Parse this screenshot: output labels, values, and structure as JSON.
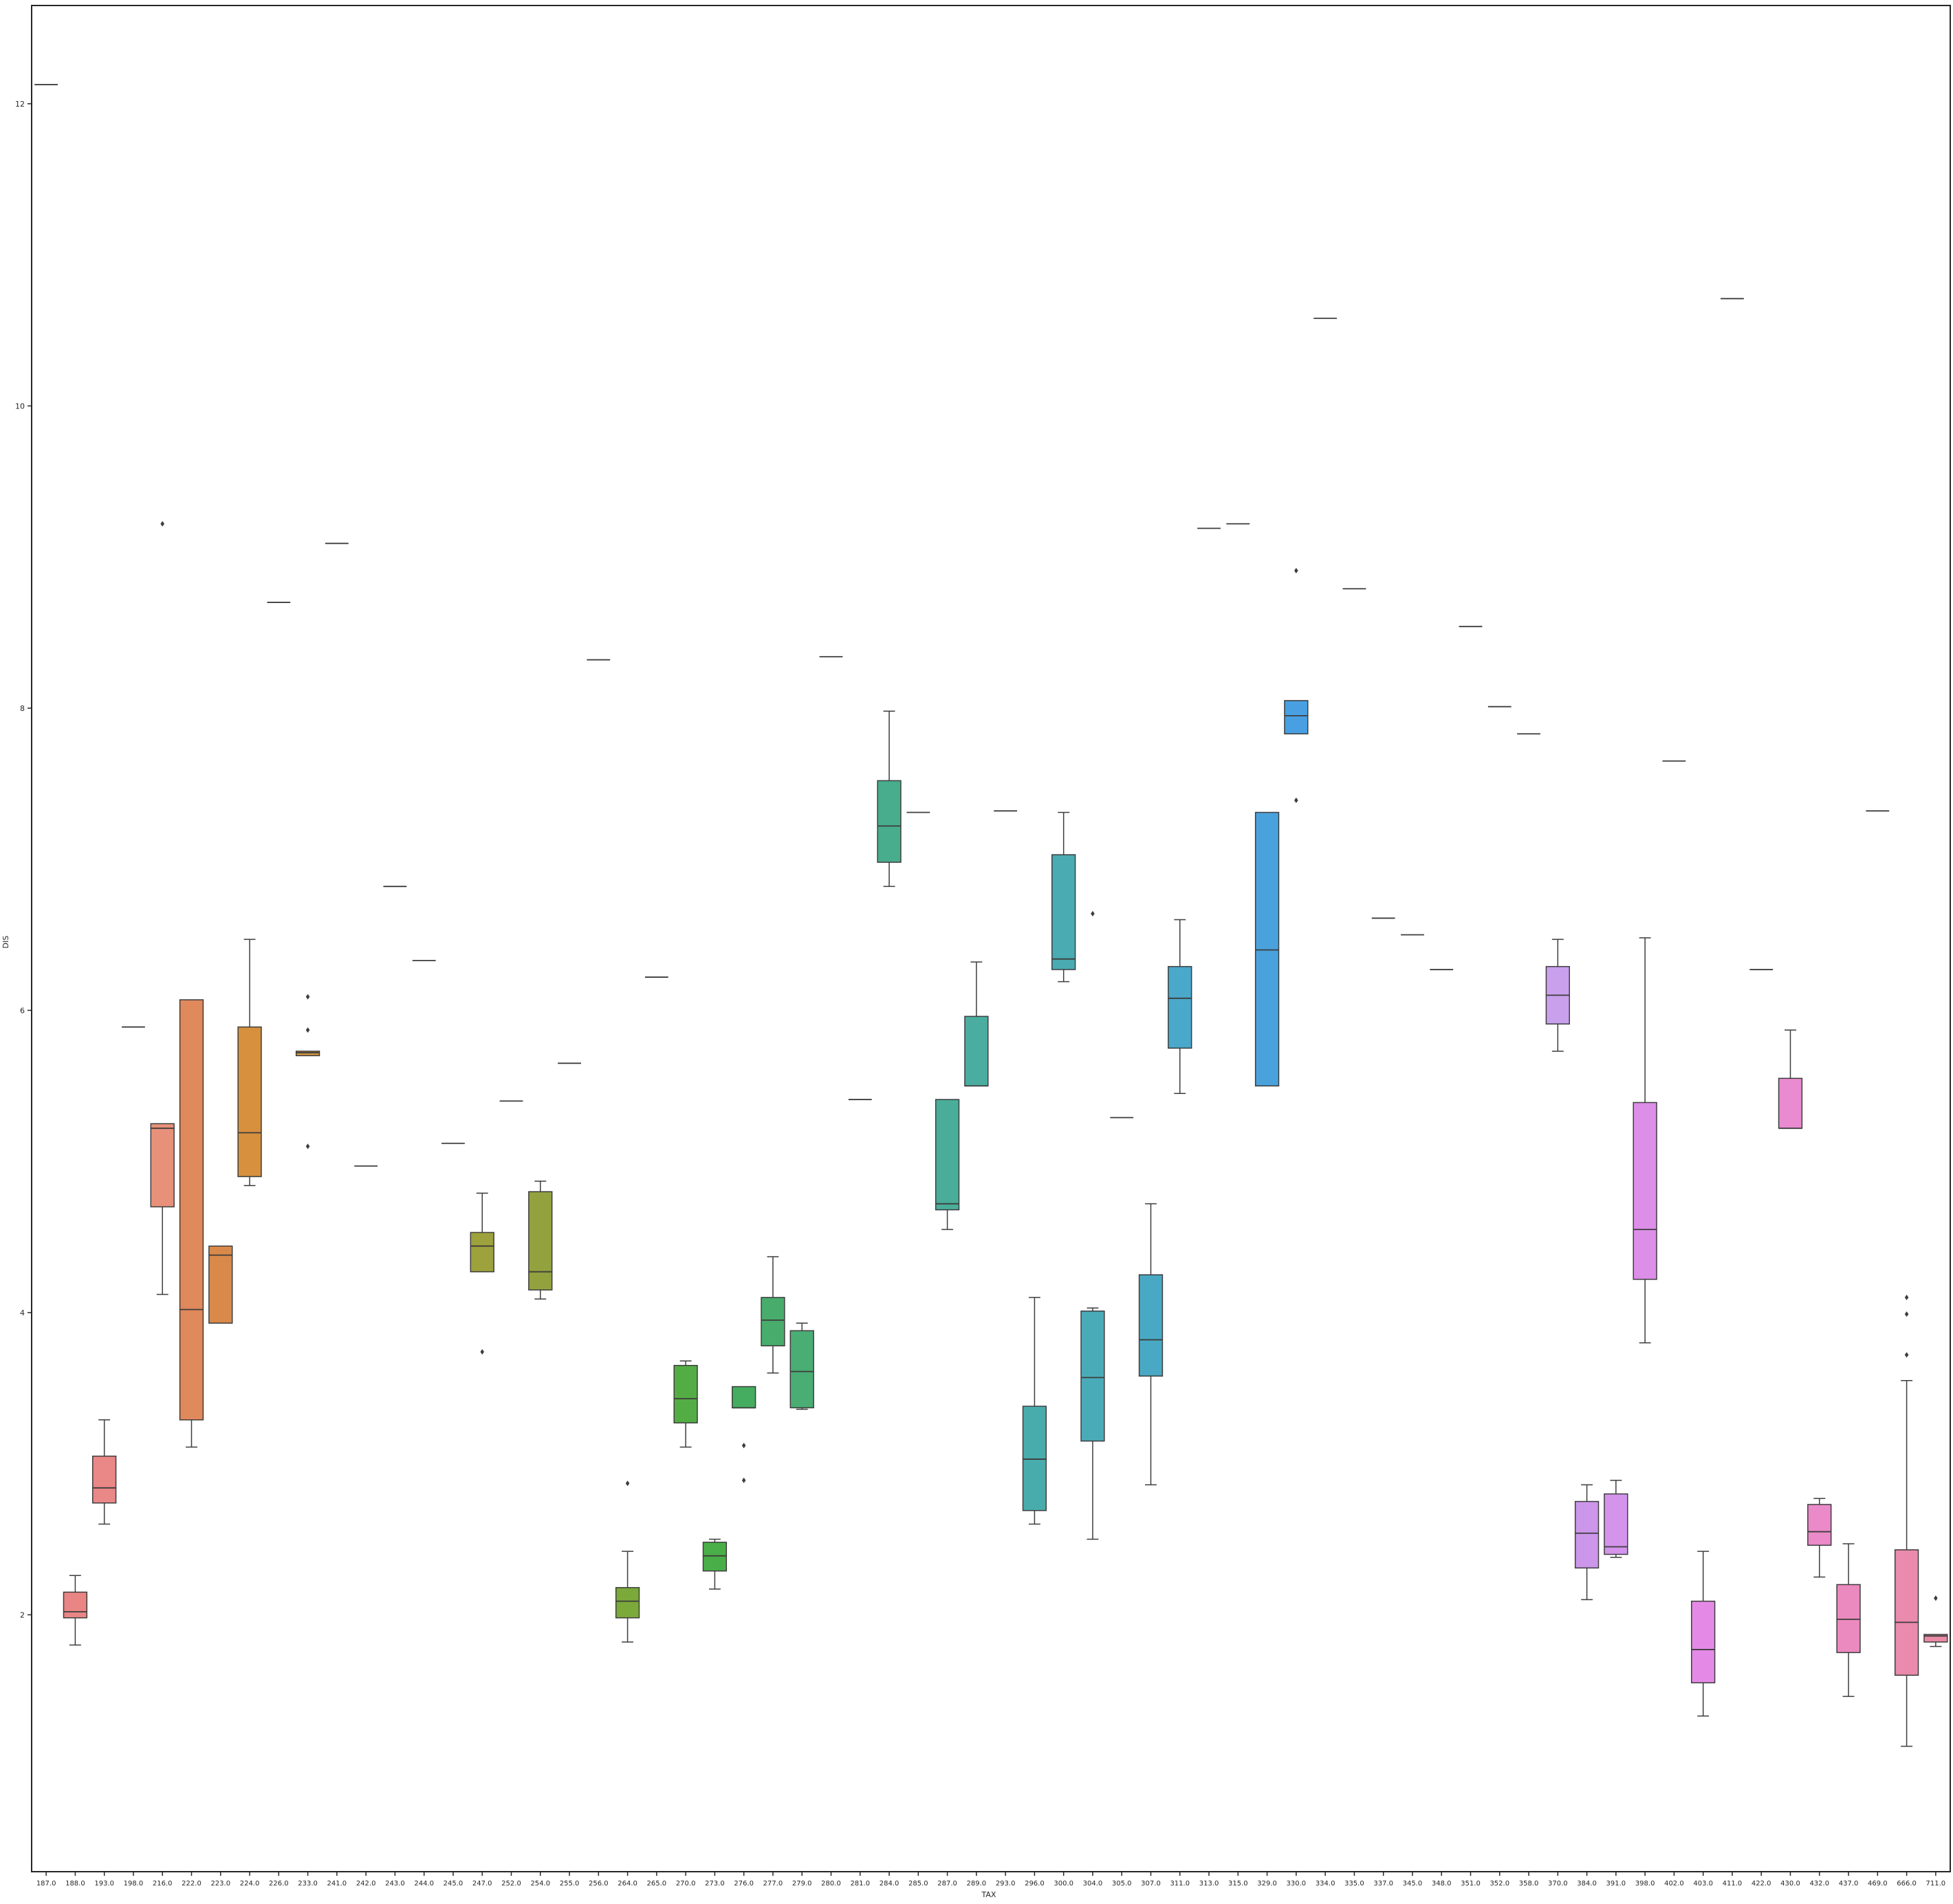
{
  "chart_data": {
    "type": "box",
    "title": "",
    "xlabel": "TAX",
    "ylabel": "DIS",
    "ylim": [
      0.3,
      12.65
    ],
    "yticks": [
      2,
      4,
      6,
      8,
      10,
      12
    ],
    "grid": false,
    "legend": null,
    "categories": [
      {
        "label": "187.0",
        "color": "#ea8484",
        "stats": [
          12.1265,
          12.1265,
          12.1265,
          12.1265,
          12.1265
        ],
        "outliers": []
      },
      {
        "label": "188.0",
        "color": "#ea8585",
        "stats": [
          1.8,
          1.98,
          2.02,
          2.15,
          2.26
        ],
        "outliers": []
      },
      {
        "label": "193.0",
        "color": "#ea8787",
        "stats": [
          2.6,
          2.74,
          2.84,
          3.05,
          3.29
        ],
        "outliers": []
      },
      {
        "label": "198.0",
        "color": "#e88a70",
        "stats": [
          5.89,
          5.89,
          5.89,
          5.89,
          5.89
        ],
        "outliers": []
      },
      {
        "label": "216.0",
        "color": "#e8917a",
        "stats": [
          4.12,
          4.7,
          5.22,
          5.25,
          5.25
        ],
        "outliers": [
          9.22
        ]
      },
      {
        "label": "222.0",
        "color": "#e0895c",
        "stats": [
          3.11,
          3.29,
          4.02,
          6.07,
          6.07
        ],
        "outliers": []
      },
      {
        "label": "223.0",
        "color": "#d98a4a",
        "stats": [
          3.93,
          3.93,
          4.38,
          4.44,
          4.44
        ],
        "outliers": []
      },
      {
        "label": "224.0",
        "color": "#d6903e",
        "stats": [
          4.84,
          4.9,
          5.19,
          5.89,
          6.47
        ],
        "outliers": []
      },
      {
        "label": "226.0",
        "color": "#d39440",
        "stats": [
          8.7,
          8.7,
          8.7,
          8.7,
          8.7
        ],
        "outliers": []
      },
      {
        "label": "233.0",
        "color": "#d09442",
        "stats": [
          5.7,
          5.7,
          5.72,
          5.73,
          5.73
        ],
        "outliers": [
          6.09,
          5.87,
          5.1
        ]
      },
      {
        "label": "241.0",
        "color": "#c49a3a",
        "stats": [
          9.09,
          9.09,
          9.09,
          9.09,
          9.09
        ],
        "outliers": []
      },
      {
        "label": "242.0",
        "color": "#b99c3c",
        "stats": [
          4.97,
          4.97,
          4.97,
          4.97,
          4.97
        ],
        "outliers": []
      },
      {
        "label": "243.0",
        "color": "#b09e3a",
        "stats": [
          6.82,
          6.82,
          6.82,
          6.82,
          6.82
        ],
        "outliers": []
      },
      {
        "label": "244.0",
        "color": "#a8a03a",
        "stats": [
          6.33,
          6.33,
          6.33,
          6.33,
          6.33
        ],
        "outliers": []
      },
      {
        "label": "245.0",
        "color": "#a2a13c",
        "stats": [
          5.12,
          5.12,
          5.12,
          5.12,
          5.12
        ],
        "outliers": []
      },
      {
        "label": "247.0",
        "color": "#9ea23c",
        "stats": [
          4.27,
          4.27,
          4.44,
          4.53,
          4.79
        ],
        "outliers": [
          3.74
        ]
      },
      {
        "label": "252.0",
        "color": "#96a23c",
        "stats": [
          5.4,
          5.4,
          5.4,
          5.4,
          5.4
        ],
        "outliers": []
      },
      {
        "label": "254.0",
        "color": "#93a23e",
        "stats": [
          4.09,
          4.15,
          4.27,
          4.8,
          4.87
        ],
        "outliers": []
      },
      {
        "label": "255.0",
        "color": "#8ba43e",
        "stats": [
          5.65,
          5.65,
          5.65,
          5.65,
          5.65
        ],
        "outliers": []
      },
      {
        "label": "256.0",
        "color": "#7fa740",
        "stats": [
          8.32,
          8.32,
          8.32,
          8.32,
          8.32
        ],
        "outliers": []
      },
      {
        "label": "264.0",
        "color": "#7ba93a",
        "stats": [
          1.82,
          1.98,
          2.09,
          2.18,
          2.42
        ],
        "outliers": [
          2.87
        ]
      },
      {
        "label": "265.0",
        "color": "#5eab3c",
        "stats": [
          6.22,
          6.22,
          6.22,
          6.22,
          6.22
        ],
        "outliers": []
      },
      {
        "label": "270.0",
        "color": "#54ad44",
        "stats": [
          3.11,
          3.27,
          3.43,
          3.65,
          3.68
        ],
        "outliers": []
      },
      {
        "label": "273.0",
        "color": "#4aae48",
        "stats": [
          2.17,
          2.29,
          2.39,
          2.48,
          2.5
        ],
        "outliers": []
      },
      {
        "label": "276.0",
        "color": "#45ad60",
        "stats": [
          3.37,
          3.37,
          3.37,
          3.51,
          3.51
        ],
        "outliers": [
          3.12,
          2.89
        ]
      },
      {
        "label": "277.0",
        "color": "#48ad6c",
        "stats": [
          3.6,
          3.78,
          3.95,
          4.1,
          4.37
        ],
        "outliers": []
      },
      {
        "label": "279.0",
        "color": "#4aad74",
        "stats": [
          3.36,
          3.37,
          3.61,
          3.88,
          3.93
        ],
        "outliers": []
      },
      {
        "label": "280.0",
        "color": "#4bad7c",
        "stats": [
          8.34,
          8.34,
          8.34,
          8.34,
          8.34
        ],
        "outliers": []
      },
      {
        "label": "281.0",
        "color": "#4cad84",
        "stats": [
          5.41,
          5.41,
          5.41,
          5.41,
          5.41
        ],
        "outliers": []
      },
      {
        "label": "284.0",
        "color": "#48ad8c",
        "stats": [
          6.82,
          6.98,
          7.22,
          7.52,
          7.98
        ],
        "outliers": []
      },
      {
        "label": "285.0",
        "color": "#48ad94",
        "stats": [
          7.31,
          7.31,
          7.31,
          7.31,
          7.31
        ],
        "outliers": []
      },
      {
        "label": "287.0",
        "color": "#4aad9a",
        "stats": [
          4.55,
          4.68,
          4.72,
          5.41,
          5.41
        ],
        "outliers": []
      },
      {
        "label": "289.0",
        "color": "#4aada0",
        "stats": [
          5.5,
          5.5,
          5.5,
          5.96,
          6.32
        ],
        "outliers": []
      },
      {
        "label": "293.0",
        "color": "#4aada6",
        "stats": [
          7.32,
          7.32,
          7.32,
          7.32,
          7.32
        ],
        "outliers": []
      },
      {
        "label": "296.0",
        "color": "#49acac",
        "stats": [
          2.6,
          2.69,
          3.03,
          3.38,
          4.1
        ],
        "outliers": []
      },
      {
        "label": "300.0",
        "color": "#4aabb2",
        "stats": [
          6.19,
          6.27,
          6.34,
          7.03,
          7.31
        ],
        "outliers": []
      },
      {
        "label": "304.0",
        "color": "#4aabb8",
        "stats": [
          2.5,
          3.15,
          3.57,
          4.01,
          4.03
        ],
        "outliers": [
          6.64
        ]
      },
      {
        "label": "305.0",
        "color": "#48aabe",
        "stats": [
          5.29,
          5.29,
          5.29,
          5.29,
          5.29
        ],
        "outliers": []
      },
      {
        "label": "307.0",
        "color": "#49a9c4",
        "stats": [
          2.86,
          3.58,
          3.82,
          4.25,
          4.72
        ],
        "outliers": []
      },
      {
        "label": "311.0",
        "color": "#4aa8ca",
        "stats": [
          5.45,
          5.75,
          6.08,
          6.29,
          6.6
        ],
        "outliers": []
      },
      {
        "label": "313.0",
        "color": "#4aa6d0",
        "stats": [
          9.19,
          9.19,
          9.19,
          9.19,
          9.19
        ],
        "outliers": []
      },
      {
        "label": "315.0",
        "color": "#4aa4d6",
        "stats": [
          9.22,
          9.22,
          9.22,
          9.22,
          9.22
        ],
        "outliers": []
      },
      {
        "label": "329.0",
        "color": "#4aa2dc",
        "stats": [
          5.5,
          5.5,
          6.4,
          7.31,
          7.31
        ],
        "outliers": []
      },
      {
        "label": "330.0",
        "color": "#48a0e2",
        "stats": [
          7.83,
          7.83,
          7.95,
          8.05,
          8.05
        ],
        "outliers": [
          8.91,
          7.39
        ]
      },
      {
        "label": "334.0",
        "color": "#5aa0e6",
        "stats": [
          10.58,
          10.58,
          10.58,
          10.58,
          10.58
        ],
        "outliers": []
      },
      {
        "label": "335.0",
        "color": "#6a9ee8",
        "stats": [
          8.79,
          8.79,
          8.79,
          8.79,
          8.79
        ],
        "outliers": []
      },
      {
        "label": "337.0",
        "color": "#7a9cea",
        "stats": [
          6.61,
          6.61,
          6.61,
          6.61,
          6.61
        ],
        "outliers": []
      },
      {
        "label": "345.0",
        "color": "#8a9aea",
        "stats": [
          6.5,
          6.5,
          6.5,
          6.5,
          6.5
        ],
        "outliers": []
      },
      {
        "label": "348.0",
        "color": "#9a98ea",
        "stats": [
          6.27,
          6.27,
          6.27,
          6.27,
          6.27
        ],
        "outliers": []
      },
      {
        "label": "351.0",
        "color": "#a896ea",
        "stats": [
          8.54,
          8.54,
          8.54,
          8.54,
          8.54
        ],
        "outliers": []
      },
      {
        "label": "352.0",
        "color": "#b494ea",
        "stats": [
          8.01,
          8.01,
          8.01,
          8.01,
          8.01
        ],
        "outliers": []
      },
      {
        "label": "358.0",
        "color": "#be92ea",
        "stats": [
          7.83,
          7.83,
          7.83,
          7.83,
          7.83
        ],
        "outliers": []
      },
      {
        "label": "370.0",
        "color": "#c8a0ec",
        "stats": [
          5.73,
          5.91,
          6.1,
          6.29,
          6.47
        ],
        "outliers": []
      },
      {
        "label": "384.0",
        "color": "#cc96ea",
        "stats": [
          2.1,
          2.31,
          2.54,
          2.75,
          2.86
        ],
        "outliers": []
      },
      {
        "label": "391.0",
        "color": "#d494ec",
        "stats": [
          2.38,
          2.4,
          2.45,
          2.8,
          2.89
        ],
        "outliers": []
      },
      {
        "label": "398.0",
        "color": "#dc8ee8",
        "stats": [
          3.8,
          4.22,
          4.55,
          5.39,
          6.48
        ],
        "outliers": []
      },
      {
        "label": "402.0",
        "color": "#e08ce6",
        "stats": [
          7.65,
          7.65,
          7.65,
          7.65,
          7.65
        ],
        "outliers": []
      },
      {
        "label": "403.0",
        "color": "#e48ae6",
        "stats": [
          1.33,
          1.55,
          1.77,
          2.09,
          2.42
        ],
        "outliers": []
      },
      {
        "label": "411.0",
        "color": "#e68ae2",
        "stats": [
          10.71,
          10.71,
          10.71,
          10.71,
          10.71
        ],
        "outliers": []
      },
      {
        "label": "422.0",
        "color": "#e88adc",
        "stats": [
          6.27,
          6.27,
          6.27,
          6.27,
          6.27
        ],
        "outliers": []
      },
      {
        "label": "430.0",
        "color": "#ea8ad0",
        "stats": [
          5.22,
          5.22,
          5.22,
          5.55,
          5.87
        ],
        "outliers": []
      },
      {
        "label": "432.0",
        "color": "#ea8ac8",
        "stats": [
          2.25,
          2.46,
          2.55,
          2.73,
          2.77
        ],
        "outliers": []
      },
      {
        "label": "437.0",
        "color": "#ea8abe",
        "stats": [
          1.46,
          1.75,
          1.97,
          2.2,
          2.47
        ],
        "outliers": []
      },
      {
        "label": "469.0",
        "color": "#ea8ab6",
        "stats": [
          7.32,
          7.32,
          7.32,
          7.32,
          7.32
        ],
        "outliers": []
      },
      {
        "label": "666.0",
        "color": "#ea8aac",
        "stats": [
          1.13,
          1.6,
          1.95,
          2.43,
          3.55
        ],
        "outliers": [
          4.1,
          3.99,
          3.72
        ]
      },
      {
        "label": "711.0",
        "color": "#ea8aa4",
        "stats": [
          1.79,
          1.82,
          1.86,
          1.87,
          1.87
        ],
        "outliers": [
          2.11
        ]
      }
    ]
  }
}
